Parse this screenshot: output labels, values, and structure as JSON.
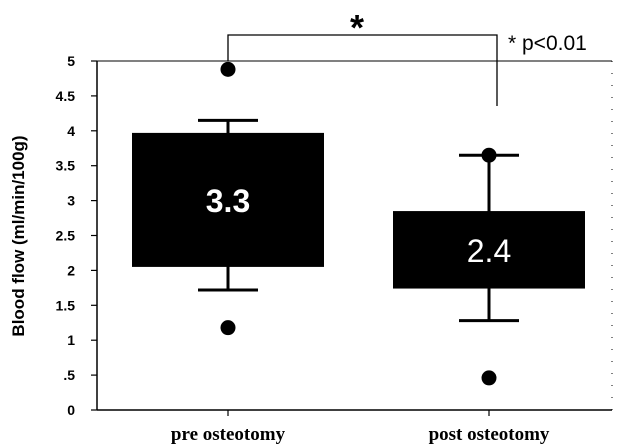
{
  "chart_data": {
    "type": "boxplot",
    "ylabel": "Blood flow (ml/min/100g)",
    "ylim": [
      0,
      5
    ],
    "yticks": [
      {
        "value": 0,
        "label": "0"
      },
      {
        "value": 0.5,
        "label": ".5"
      },
      {
        "value": 1,
        "label": "1"
      },
      {
        "value": 1.5,
        "label": "1.5"
      },
      {
        "value": 2,
        "label": "2"
      },
      {
        "value": 2.5,
        "label": "2.5"
      },
      {
        "value": 3,
        "label": "3"
      },
      {
        "value": 3.5,
        "label": "3.5"
      },
      {
        "value": 4,
        "label": "4"
      },
      {
        "value": 4.5,
        "label": "4.5"
      },
      {
        "value": 5,
        "label": "5"
      }
    ],
    "categories": [
      "pre osteotomy",
      "post osteotomy"
    ],
    "boxes": [
      {
        "category": "pre osteotomy",
        "q1": 2.05,
        "q3": 3.97,
        "whisker_low": 1.72,
        "whisker_high": 4.15,
        "outliers": [
          1.18,
          4.88
        ],
        "label": "3.3"
      },
      {
        "category": "post osteotomy",
        "q1": 1.74,
        "q3": 2.85,
        "whisker_low": 1.28,
        "whisker_high": 3.65,
        "outliers": [
          0.46,
          3.65
        ],
        "label": "2.4"
      }
    ],
    "significance": {
      "symbol": "*",
      "legend": "* p<0.01"
    },
    "colors": {
      "box": "#000000",
      "box_label": "#ffffff",
      "axis": "#000000"
    }
  }
}
